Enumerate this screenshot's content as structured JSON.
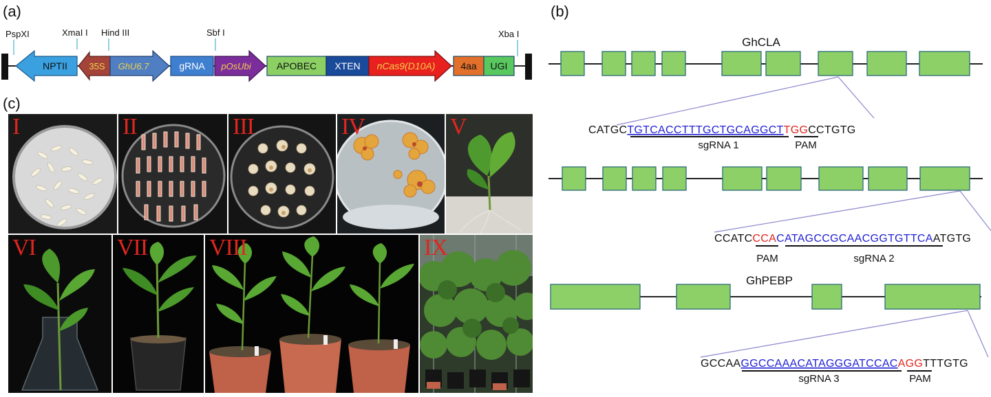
{
  "panels": {
    "a": "(a)",
    "b": "(b)",
    "c": "(c)"
  },
  "construct": {
    "sites": {
      "pspxi": "PspXI",
      "xmai": "XmaI I",
      "hindiii": "Hind III",
      "sbfi": "Sbf I",
      "xbai": "Xba I"
    },
    "elements": {
      "nptii": "NPTII",
      "p35s": "35S",
      "ghu67": "GhU6.7",
      "grna": "gRNA",
      "posubi": "pOsUbi",
      "apobec": "APOBEC",
      "xten": "XTEN",
      "ncas9": "nCas9(D10A)",
      "aa4": "4aa",
      "ugi": "UGI"
    },
    "colors": {
      "nptii": "#3aa0e0",
      "p35s": "#a3433a",
      "ghu67": "#4f7fc2",
      "grna": "#3f7fd0",
      "posubi": "#7b2d9b",
      "apobec": "#8cd064",
      "xten": "#1a4a9a",
      "ncas9": "#e8201e",
      "aa4": "#e2702a",
      "ugi": "#59c85e"
    }
  },
  "genes": {
    "ghcla": "GhCLA",
    "ghpebp": "GhPEBP",
    "exon_color": "#8cd067"
  },
  "targets": {
    "t1": {
      "pre": "CATGC",
      "sg": "TGTCACCTTTGCTGCAGGCT",
      "pam": "TGG",
      "post": "CCTGTG",
      "sg_label": "sgRNA 1",
      "pam_label": "PAM"
    },
    "t2": {
      "pre": "CCATC",
      "pam": "CCA",
      "sg": "CATAGCCGCAACGGTGTTCA",
      "post": "ATGTG",
      "sg_label": "sgRNA 2",
      "pam_label": "PAM"
    },
    "t3": {
      "pre": "GCCAA",
      "sg": "GGCCAAACATAGGGATCCAC",
      "pam": "AGG",
      "post": "TTTGTG",
      "sg_label": "sgRNA 3",
      "pam_label": "PAM"
    }
  },
  "seq_colors": {
    "sg": "#1f1fd6",
    "pam": "#e0261f"
  },
  "stages": [
    "I",
    "II",
    "III",
    "IV",
    "V",
    "VI",
    "VII",
    "VIII",
    "IX"
  ]
}
